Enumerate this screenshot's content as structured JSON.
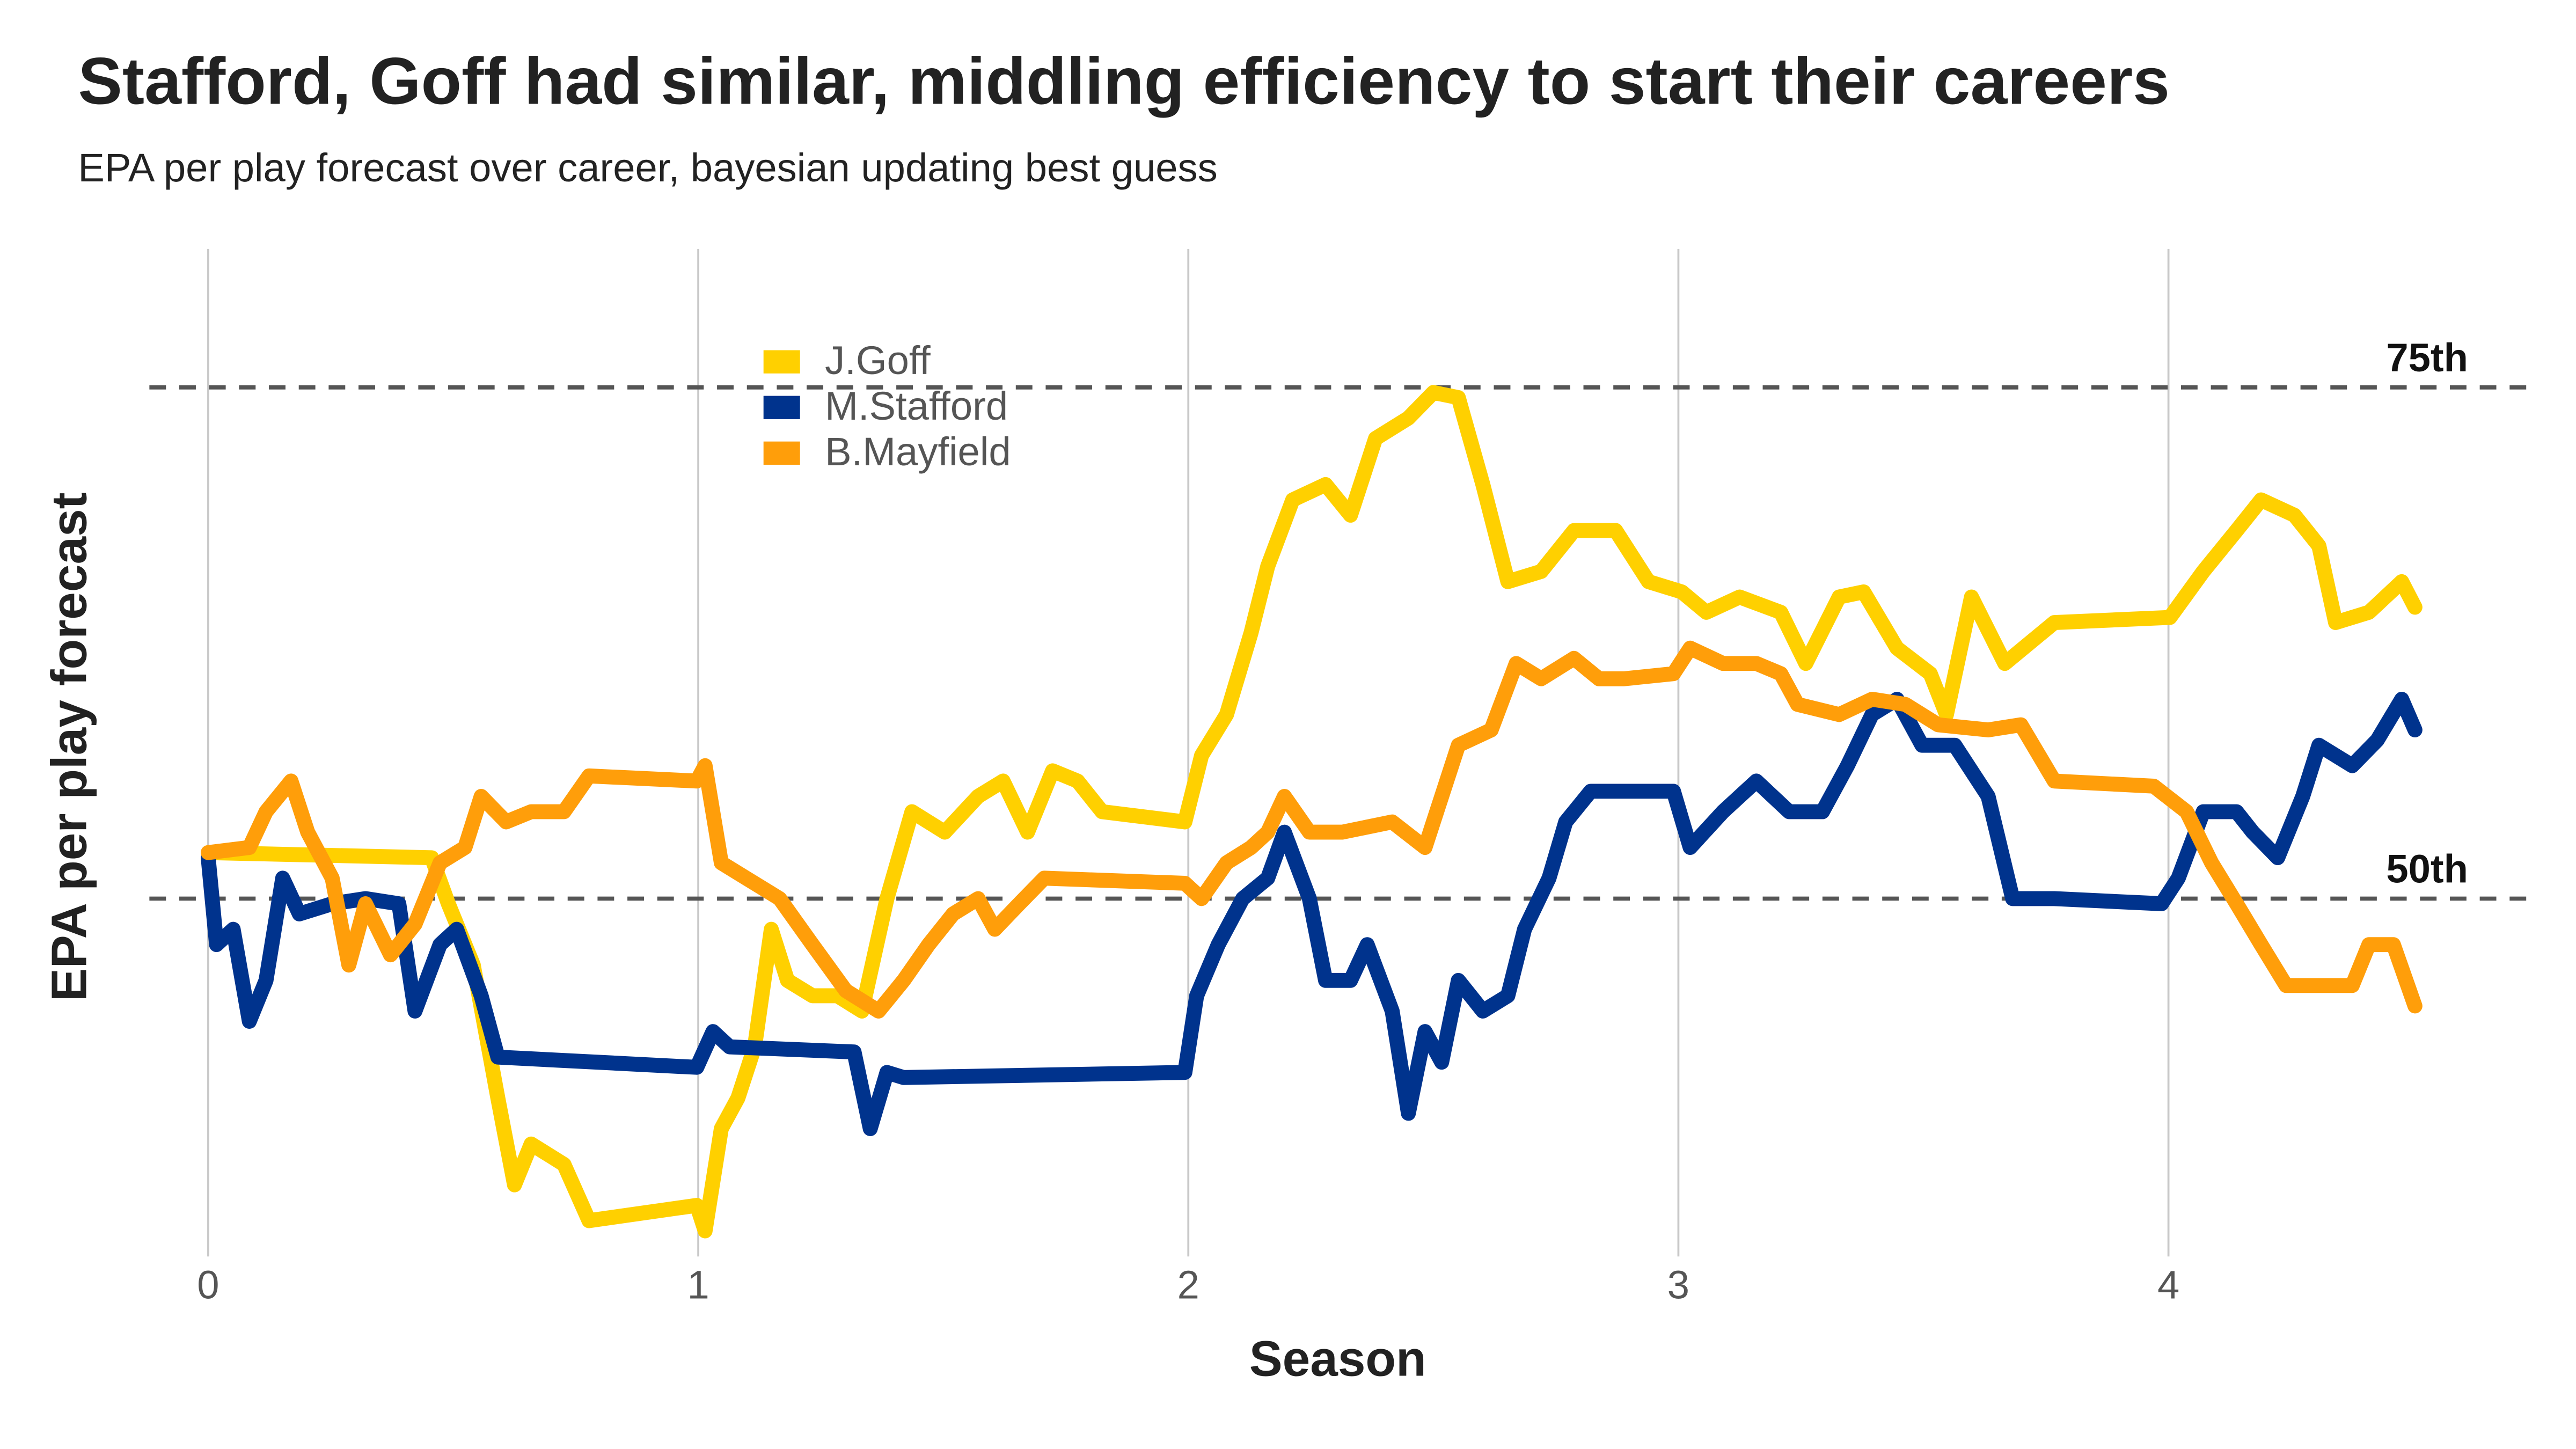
{
  "chart_data": {
    "type": "line",
    "title": "Stafford, Goff had similar, middling efficiency to start their careers",
    "subtitle": "EPA per play forecast over career, bayesian updating best guess",
    "x_label": "Season",
    "y_label": "EPA per play forecast",
    "xlim": [
      -0.12,
      4.73
    ],
    "xticks": [
      0,
      1,
      2,
      3,
      4
    ],
    "ylim": [
      -0.02,
      0.18
    ],
    "grid": true,
    "legend": "top-left",
    "reference_lines": [
      {
        "value": 0.05,
        "label": "50th"
      },
      {
        "value": 0.15,
        "label": "75th"
      }
    ],
    "series": [
      {
        "name": "J.Goff",
        "color": "#ffd000",
        "x": [
          0,
          0.456,
          0.49,
          0.541,
          0.591,
          0.625,
          0.659,
          0.726,
          0.777,
          0.997,
          1.014,
          1.047,
          1.081,
          1.115,
          1.149,
          1.182,
          1.233,
          1.284,
          1.334,
          1.385,
          1.436,
          1.503,
          1.571,
          1.622,
          1.672,
          1.723,
          1.774,
          1.824,
          1.993,
          2.027,
          2.078,
          2.128,
          2.162,
          2.213,
          2.28,
          2.331,
          2.382,
          2.449,
          2.5,
          2.551,
          2.601,
          2.652,
          2.72,
          2.787,
          2.872,
          2.939,
          3.007,
          3.057,
          3.125,
          3.209,
          3.26,
          3.328,
          3.378,
          3.446,
          3.514,
          3.547,
          3.598,
          3.666,
          3.767,
          4.003,
          4.071,
          4.139,
          4.189,
          4.257,
          4.307,
          4.341,
          4.409,
          4.476,
          4.503
        ],
        "values": [
          0.059,
          0.058,
          0.049,
          0.037,
          0.011,
          -0.006,
          0.002,
          -0.002,
          -0.013,
          -0.01,
          -0.015,
          0.005,
          0.011,
          0.021,
          0.044,
          0.034,
          0.031,
          0.031,
          0.028,
          0.05,
          0.067,
          0.063,
          0.07,
          0.073,
          0.063,
          0.075,
          0.073,
          0.067,
          0.065,
          0.078,
          0.086,
          0.102,
          0.115,
          0.128,
          0.131,
          0.125,
          0.14,
          0.144,
          0.149,
          0.148,
          0.131,
          0.112,
          0.114,
          0.122,
          0.122,
          0.112,
          0.11,
          0.106,
          0.109,
          0.106,
          0.096,
          0.109,
          0.11,
          0.099,
          0.094,
          0.086,
          0.109,
          0.096,
          0.104,
          0.105,
          0.114,
          0.122,
          0.128,
          0.125,
          0.119,
          0.104,
          0.106,
          0.112,
          0.107
        ]
      },
      {
        "name": "M.Stafford",
        "color": "#00338d",
        "x": [
          0,
          0.017,
          0.051,
          0.084,
          0.118,
          0.152,
          0.186,
          0.253,
          0.321,
          0.389,
          0.422,
          0.473,
          0.507,
          0.557,
          0.591,
          0.997,
          1.03,
          1.064,
          1.318,
          1.351,
          1.385,
          1.419,
          1.993,
          2.017,
          2.061,
          2.111,
          2.162,
          2.196,
          2.247,
          2.28,
          2.331,
          2.365,
          2.416,
          2.449,
          2.483,
          2.517,
          2.551,
          2.601,
          2.652,
          2.686,
          2.736,
          2.77,
          2.821,
          2.99,
          3.024,
          3.091,
          3.159,
          3.226,
          3.294,
          3.345,
          3.395,
          3.446,
          3.497,
          3.564,
          3.632,
          3.682,
          3.767,
          3.986,
          4.02,
          4.071,
          4.139,
          4.172,
          4.223,
          4.274,
          4.307,
          4.375,
          4.426,
          4.476,
          4.503
        ],
        "values": [
          0.058,
          0.041,
          0.044,
          0.026,
          0.034,
          0.054,
          0.047,
          0.049,
          0.05,
          0.049,
          0.028,
          0.041,
          0.044,
          0.031,
          0.019,
          0.017,
          0.024,
          0.021,
          0.02,
          0.005,
          0.016,
          0.015,
          0.016,
          0.031,
          0.041,
          0.05,
          0.054,
          0.063,
          0.05,
          0.034,
          0.034,
          0.041,
          0.028,
          0.008,
          0.024,
          0.018,
          0.034,
          0.028,
          0.031,
          0.044,
          0.054,
          0.065,
          0.071,
          0.071,
          0.06,
          0.067,
          0.073,
          0.067,
          0.067,
          0.076,
          0.086,
          0.089,
          0.08,
          0.08,
          0.07,
          0.05,
          0.05,
          0.049,
          0.054,
          0.067,
          0.067,
          0.063,
          0.058,
          0.07,
          0.08,
          0.076,
          0.081,
          0.089,
          0.083
        ]
      },
      {
        "name": "B.Mayfield",
        "color": "#ff9e0a",
        "x": [
          0,
          0.084,
          0.118,
          0.169,
          0.203,
          0.253,
          0.287,
          0.321,
          0.372,
          0.422,
          0.473,
          0.524,
          0.557,
          0.608,
          0.659,
          0.726,
          0.777,
          0.997,
          1.014,
          1.047,
          1.098,
          1.166,
          1.233,
          1.301,
          1.368,
          1.419,
          1.47,
          1.52,
          1.571,
          1.605,
          1.655,
          1.706,
          1.993,
          2.027,
          2.078,
          2.128,
          2.162,
          2.196,
          2.247,
          2.314,
          2.416,
          2.483,
          2.551,
          2.618,
          2.669,
          2.72,
          2.787,
          2.838,
          2.889,
          2.99,
          3.024,
          3.091,
          3.159,
          3.209,
          3.243,
          3.328,
          3.395,
          3.463,
          3.53,
          3.632,
          3.699,
          3.767,
          3.97,
          4.037,
          4.088,
          4.139,
          4.189,
          4.24,
          4.375,
          4.409,
          4.459,
          4.503
        ],
        "values": [
          0.059,
          0.06,
          0.067,
          0.073,
          0.063,
          0.054,
          0.037,
          0.049,
          0.039,
          0.045,
          0.057,
          0.06,
          0.07,
          0.065,
          0.067,
          0.067,
          0.074,
          0.073,
          0.076,
          0.057,
          0.054,
          0.05,
          0.041,
          0.032,
          0.028,
          0.034,
          0.041,
          0.047,
          0.05,
          0.044,
          0.049,
          0.054,
          0.053,
          0.05,
          0.057,
          0.06,
          0.063,
          0.07,
          0.063,
          0.063,
          0.065,
          0.06,
          0.08,
          0.083,
          0.096,
          0.093,
          0.097,
          0.093,
          0.093,
          0.094,
          0.099,
          0.096,
          0.096,
          0.094,
          0.088,
          0.086,
          0.089,
          0.088,
          0.084,
          0.083,
          0.084,
          0.073,
          0.072,
          0.067,
          0.057,
          0.049,
          0.041,
          0.033,
          0.033,
          0.041,
          0.041,
          0.029
        ]
      }
    ]
  }
}
